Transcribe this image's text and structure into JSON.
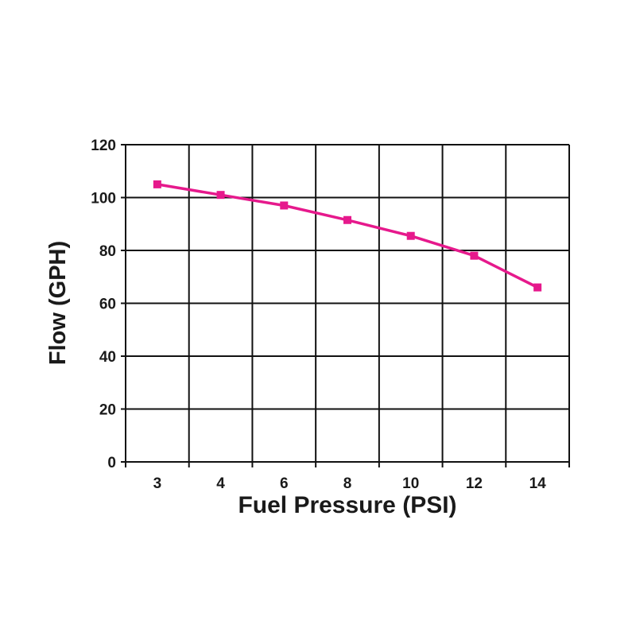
{
  "chart_data": {
    "type": "line",
    "title": "",
    "xlabel": "Fuel Pressure (PSI)",
    "ylabel": "Flow (GPH)",
    "categories": [
      "3",
      "4",
      "6",
      "8",
      "10",
      "12",
      "14"
    ],
    "series": [
      {
        "values": [
          105,
          101,
          97,
          91.5,
          85.5,
          78,
          66
        ]
      }
    ],
    "ylim": [
      0,
      120
    ],
    "yticks": [
      "0",
      "20",
      "40",
      "60",
      "80",
      "100",
      "120"
    ],
    "grid": true,
    "legend": "none",
    "colors": {
      "series": "#e6198c",
      "grid": "#111111"
    }
  }
}
